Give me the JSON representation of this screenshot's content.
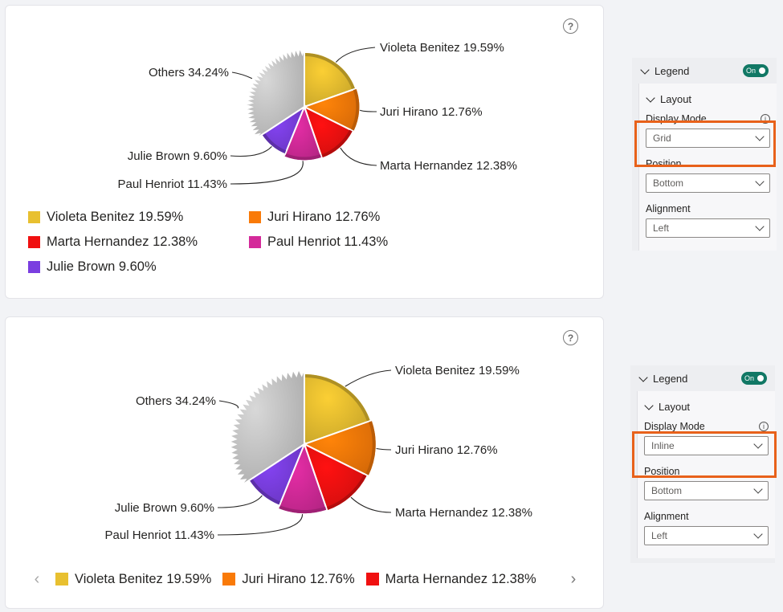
{
  "help_glyph": "?",
  "chart_data": [
    {
      "type": "pie",
      "slices": [
        {
          "label": "Violeta Benitez",
          "value": 19.59,
          "display": "Violeta Benitez 19.59%",
          "color": "#e8c030"
        },
        {
          "label": "Juri Hirano",
          "value": 12.76,
          "display": "Juri Hirano 12.76%",
          "color": "#f97a08"
        },
        {
          "label": "Marta Hernandez",
          "value": 12.38,
          "display": "Marta Hernandez 12.38%",
          "color": "#f01010"
        },
        {
          "label": "Paul Henriot",
          "value": 11.43,
          "display": "Paul Henriot 11.43%",
          "color": "#d42a9a"
        },
        {
          "label": "Julie Brown",
          "value": 9.6,
          "display": "Julie Brown 9.60%",
          "color": "#7a3ee0"
        },
        {
          "label": "Others",
          "value": 34.24,
          "display": "Others 34.24%",
          "color": "#c8c8c8"
        }
      ],
      "legend": {
        "mode": "grid",
        "items": [
          {
            "label": "Violeta Benitez 19.59%",
            "color": "#e8c030"
          },
          {
            "label": "Juri Hirano 12.76%",
            "color": "#f97a08"
          },
          {
            "label": "Marta Hernandez 12.38%",
            "color": "#f01010"
          },
          {
            "label": "Paul Henriot 11.43%",
            "color": "#d42a9a"
          },
          {
            "label": "Julie Brown 9.60%",
            "color": "#7a3ee0"
          }
        ]
      }
    },
    {
      "type": "pie",
      "slices": [
        {
          "label": "Violeta Benitez",
          "value": 19.59,
          "display": "Violeta Benitez 19.59%",
          "color": "#e8c030"
        },
        {
          "label": "Juri Hirano",
          "value": 12.76,
          "display": "Juri Hirano 12.76%",
          "color": "#f97a08"
        },
        {
          "label": "Marta Hernandez",
          "value": 12.38,
          "display": "Marta Hernandez 12.38%",
          "color": "#f01010"
        },
        {
          "label": "Paul Henriot",
          "value": 11.43,
          "display": "Paul Henriot 11.43%",
          "color": "#d42a9a"
        },
        {
          "label": "Julie Brown",
          "value": 9.6,
          "display": "Julie Brown 9.60%",
          "color": "#7a3ee0"
        },
        {
          "label": "Others",
          "value": 34.24,
          "display": "Others 34.24%",
          "color": "#c8c8c8"
        }
      ],
      "legend": {
        "mode": "inline",
        "items": [
          {
            "label": "Violeta Benitez 19.59%",
            "color": "#e8c030"
          },
          {
            "label": "Juri Hirano 12.76%",
            "color": "#f97a08"
          },
          {
            "label": "Marta Hernandez 12.38%",
            "color": "#f01010"
          }
        ],
        "prev_icon": "‹",
        "next_icon": "›"
      }
    }
  ],
  "panels": [
    {
      "legend_label": "Legend",
      "toggle_label": "On",
      "layout_label": "Layout",
      "display_mode_label": "Display Mode",
      "display_mode_value": "Grid",
      "position_label": "Position",
      "position_value": "Bottom",
      "alignment_label": "Alignment",
      "alignment_value": "Left",
      "info_glyph": "i"
    },
    {
      "legend_label": "Legend",
      "toggle_label": "On",
      "layout_label": "Layout",
      "display_mode_label": "Display Mode",
      "display_mode_value": "Inline",
      "position_label": "Position",
      "position_value": "Bottom",
      "alignment_label": "Alignment",
      "alignment_value": "Left",
      "info_glyph": "i"
    }
  ],
  "colors": {
    "accent_toggle": "#117865",
    "highlight": "#e8611a"
  }
}
